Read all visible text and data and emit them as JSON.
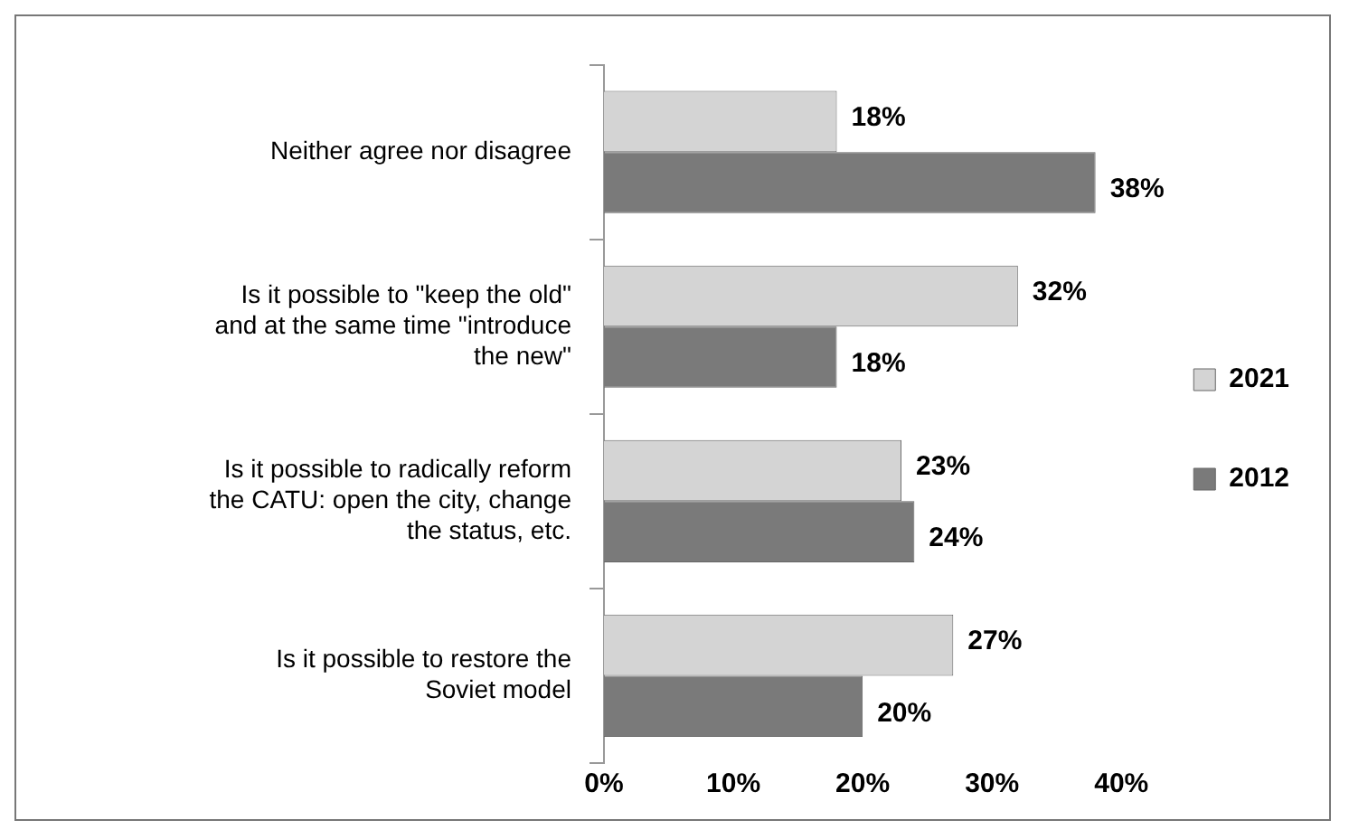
{
  "chart_data": {
    "type": "bar",
    "orientation": "horizontal",
    "categories": [
      "Neither agree nor disagree",
      "Is it possible to \"keep the old\" and at the same time \"introduce the new\"",
      "Is it possible to radically reform the CATU: open the city, change the status, etc.",
      "Is it possible to restore the Soviet model"
    ],
    "series": [
      {
        "name": "2021",
        "color": "#d4d4d4",
        "values": [
          18,
          32,
          23,
          27
        ],
        "value_labels": [
          "18%",
          "32%",
          "23%",
          "27%"
        ]
      },
      {
        "name": "2012",
        "color": "#7a7a7a",
        "values": [
          38,
          18,
          24,
          20
        ],
        "value_labels": [
          "38%",
          "18%",
          "24%",
          "20%"
        ]
      }
    ],
    "xlim": [
      0,
      40
    ],
    "xticks": [
      {
        "value": 0,
        "label": "0%"
      },
      {
        "value": 10,
        "label": "10%"
      },
      {
        "value": 20,
        "label": "20%"
      },
      {
        "value": 30,
        "label": "30%"
      },
      {
        "value": 40,
        "label": "40%"
      }
    ],
    "grid": false,
    "legend": "right"
  }
}
